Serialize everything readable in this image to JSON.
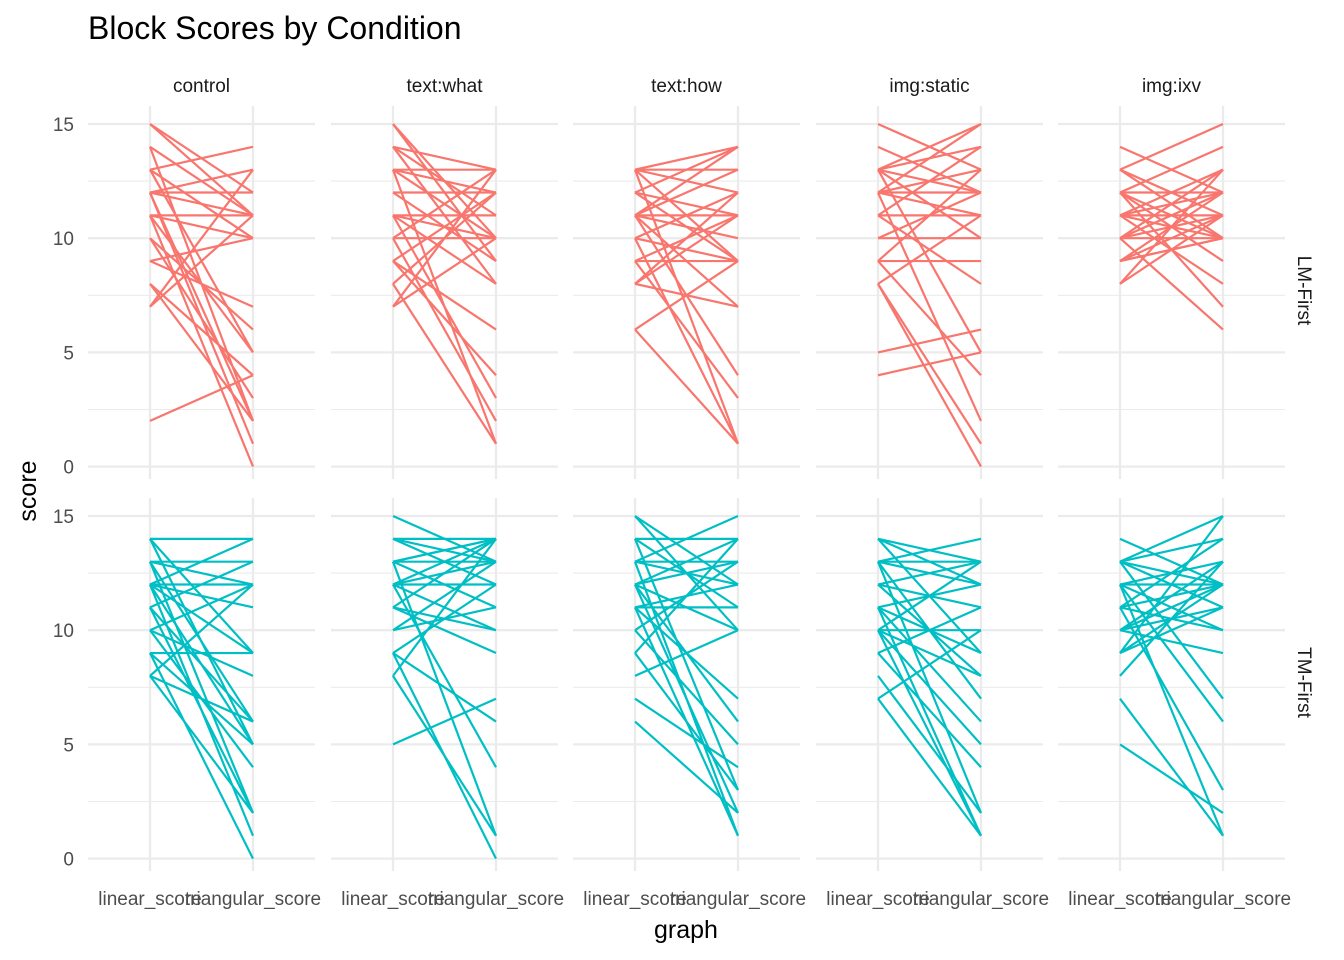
{
  "chart_data": {
    "type": "line",
    "title": "Block Scores by Condition",
    "xlabel": "graph",
    "ylabel": "score",
    "x_categories": [
      "linear_score",
      "triangular_score"
    ],
    "y_ticks": [
      0,
      5,
      10,
      15
    ],
    "ylim": [
      0,
      15
    ],
    "grid": true,
    "legend": "none",
    "facet_columns": [
      "control",
      "text:what",
      "text:how",
      "img:static",
      "img:ixv"
    ],
    "facet_rows": [
      "LM-First",
      "TM-First"
    ],
    "colors": {
      "LM-First": "#F8766D",
      "TM-First": "#00BFC4"
    },
    "panels": [
      {
        "row": "LM-First",
        "col": "control",
        "lines": [
          [
            15,
            12
          ],
          [
            15,
            11
          ],
          [
            14,
            11
          ],
          [
            14,
            2
          ],
          [
            13,
            14
          ],
          [
            13,
            10
          ],
          [
            13,
            5
          ],
          [
            12,
            13
          ],
          [
            12,
            12
          ],
          [
            12,
            11
          ],
          [
            12,
            2
          ],
          [
            12,
            1
          ],
          [
            11,
            11
          ],
          [
            11,
            10
          ],
          [
            11,
            5
          ],
          [
            11,
            0
          ],
          [
            10,
            6
          ],
          [
            10,
            3
          ],
          [
            9,
            10
          ],
          [
            9,
            7
          ],
          [
            8,
            4
          ],
          [
            8,
            2
          ],
          [
            7,
            13
          ],
          [
            7,
            11
          ],
          [
            2,
            4
          ]
        ]
      },
      {
        "row": "LM-First",
        "col": "text:what",
        "lines": [
          [
            15,
            10
          ],
          [
            15,
            9
          ],
          [
            14,
            13
          ],
          [
            14,
            11
          ],
          [
            14,
            8
          ],
          [
            13,
            13
          ],
          [
            13,
            10
          ],
          [
            13,
            1
          ],
          [
            13,
            12
          ],
          [
            12,
            12
          ],
          [
            12,
            9
          ],
          [
            11,
            11
          ],
          [
            11,
            10
          ],
          [
            11,
            3
          ],
          [
            11,
            8
          ],
          [
            10,
            13
          ],
          [
            10,
            10
          ],
          [
            10,
            2
          ],
          [
            9,
            12
          ],
          [
            9,
            6
          ],
          [
            9,
            4
          ],
          [
            8,
            1
          ],
          [
            7,
            13
          ],
          [
            7,
            10
          ],
          [
            8,
            12
          ]
        ]
      },
      {
        "row": "LM-First",
        "col": "text:how",
        "lines": [
          [
            13,
            14
          ],
          [
            13,
            13
          ],
          [
            13,
            12
          ],
          [
            13,
            1
          ],
          [
            12,
            14
          ],
          [
            12,
            11
          ],
          [
            12,
            9
          ],
          [
            11,
            14
          ],
          [
            11,
            13
          ],
          [
            11,
            11
          ],
          [
            11,
            10
          ],
          [
            11,
            7
          ],
          [
            11,
            4
          ],
          [
            10,
            12
          ],
          [
            10,
            9
          ],
          [
            10,
            1
          ],
          [
            9,
            11
          ],
          [
            9,
            9
          ],
          [
            9,
            3
          ],
          [
            8,
            12
          ],
          [
            8,
            11
          ],
          [
            8,
            7
          ],
          [
            6,
            9
          ],
          [
            6,
            1
          ],
          [
            13,
            9
          ]
        ]
      },
      {
        "row": "LM-First",
        "col": "img:static",
        "lines": [
          [
            15,
            13
          ],
          [
            14,
            12
          ],
          [
            13,
            15
          ],
          [
            13,
            14
          ],
          [
            13,
            12
          ],
          [
            13,
            10
          ],
          [
            13,
            5
          ],
          [
            12,
            13
          ],
          [
            12,
            11
          ],
          [
            12,
            2
          ],
          [
            12,
            15
          ],
          [
            11,
            14
          ],
          [
            11,
            11
          ],
          [
            11,
            8
          ],
          [
            10,
            12
          ],
          [
            10,
            10
          ],
          [
            9,
            13
          ],
          [
            9,
            9
          ],
          [
            9,
            4
          ],
          [
            8,
            11
          ],
          [
            8,
            0
          ],
          [
            8,
            1
          ],
          [
            5,
            6
          ],
          [
            4,
            5
          ],
          [
            12,
            12
          ]
        ]
      },
      {
        "row": "LM-First",
        "col": "img:ixv",
        "lines": [
          [
            14,
            12
          ],
          [
            13,
            15
          ],
          [
            13,
            11
          ],
          [
            13,
            10
          ],
          [
            12,
            14
          ],
          [
            12,
            12
          ],
          [
            12,
            10
          ],
          [
            12,
            9
          ],
          [
            12,
            7
          ],
          [
            11,
            13
          ],
          [
            11,
            12
          ],
          [
            11,
            10
          ],
          [
            11,
            8
          ],
          [
            10,
            13
          ],
          [
            10,
            11
          ],
          [
            10,
            10
          ],
          [
            10,
            6
          ],
          [
            9,
            12
          ],
          [
            9,
            11
          ],
          [
            9,
            10
          ],
          [
            8,
            13
          ],
          [
            8,
            11
          ],
          [
            11,
            11
          ],
          [
            10,
            12
          ],
          [
            9,
            10
          ]
        ]
      },
      {
        "row": "TM-First",
        "col": "control",
        "lines": [
          [
            14,
            14
          ],
          [
            14,
            9
          ],
          [
            14,
            5
          ],
          [
            13,
            13
          ],
          [
            13,
            12
          ],
          [
            13,
            6
          ],
          [
            13,
            2
          ],
          [
            12,
            14
          ],
          [
            12,
            12
          ],
          [
            12,
            9
          ],
          [
            12,
            5
          ],
          [
            12,
            1
          ],
          [
            12,
            11
          ],
          [
            11,
            13
          ],
          [
            11,
            6
          ],
          [
            11,
            2
          ],
          [
            10,
            12
          ],
          [
            10,
            8
          ],
          [
            10,
            4
          ],
          [
            9,
            9
          ],
          [
            9,
            5
          ],
          [
            9,
            0
          ],
          [
            8,
            12
          ],
          [
            8,
            6
          ],
          [
            8,
            2
          ]
        ]
      },
      {
        "row": "TM-First",
        "col": "text:what",
        "lines": [
          [
            15,
            13
          ],
          [
            14,
            14
          ],
          [
            14,
            13
          ],
          [
            14,
            12
          ],
          [
            13,
            14
          ],
          [
            13,
            11
          ],
          [
            13,
            13
          ],
          [
            13,
            1
          ],
          [
            12,
            14
          ],
          [
            12,
            12
          ],
          [
            12,
            10
          ],
          [
            12,
            4
          ],
          [
            12,
            13
          ],
          [
            11,
            14
          ],
          [
            11,
            10
          ],
          [
            11,
            9
          ],
          [
            10,
            13
          ],
          [
            10,
            11
          ],
          [
            9,
            12
          ],
          [
            9,
            6
          ],
          [
            9,
            0
          ],
          [
            8,
            14
          ],
          [
            8,
            1
          ],
          [
            5,
            7
          ],
          [
            13,
            14
          ]
        ]
      },
      {
        "row": "TM-First",
        "col": "text:how",
        "lines": [
          [
            15,
            12
          ],
          [
            15,
            10
          ],
          [
            14,
            14
          ],
          [
            14,
            11
          ],
          [
            14,
            3
          ],
          [
            13,
            15
          ],
          [
            13,
            12
          ],
          [
            13,
            1
          ],
          [
            13,
            13
          ],
          [
            12,
            14
          ],
          [
            12,
            13
          ],
          [
            12,
            10
          ],
          [
            12,
            2
          ],
          [
            12,
            6
          ],
          [
            11,
            12
          ],
          [
            11,
            11
          ],
          [
            11,
            7
          ],
          [
            11,
            1
          ],
          [
            10,
            13
          ],
          [
            10,
            5
          ],
          [
            9,
            14
          ],
          [
            9,
            3
          ],
          [
            8,
            10
          ],
          [
            7,
            4
          ],
          [
            6,
            2
          ]
        ]
      },
      {
        "row": "TM-First",
        "col": "img:static",
        "lines": [
          [
            14,
            13
          ],
          [
            14,
            12
          ],
          [
            14,
            9
          ],
          [
            13,
            14
          ],
          [
            13,
            13
          ],
          [
            13,
            12
          ],
          [
            13,
            7
          ],
          [
            13,
            2
          ],
          [
            12,
            11
          ],
          [
            12,
            13
          ],
          [
            12,
            8
          ],
          [
            11,
            12
          ],
          [
            11,
            9
          ],
          [
            11,
            6
          ],
          [
            11,
            1
          ],
          [
            10,
            13
          ],
          [
            10,
            10
          ],
          [
            10,
            8
          ],
          [
            10,
            5
          ],
          [
            10,
            1
          ],
          [
            9,
            11
          ],
          [
            9,
            4
          ],
          [
            8,
            2
          ],
          [
            7,
            10
          ],
          [
            7,
            1
          ]
        ]
      },
      {
        "row": "TM-First",
        "col": "img:ixv",
        "lines": [
          [
            14,
            12
          ],
          [
            13,
            15
          ],
          [
            13,
            14
          ],
          [
            13,
            12
          ],
          [
            13,
            11
          ],
          [
            13,
            7
          ],
          [
            12,
            13
          ],
          [
            12,
            12
          ],
          [
            12,
            10
          ],
          [
            12,
            6
          ],
          [
            12,
            1
          ],
          [
            11,
            14
          ],
          [
            11,
            12
          ],
          [
            11,
            10
          ],
          [
            11,
            3
          ],
          [
            10,
            13
          ],
          [
            10,
            12
          ],
          [
            10,
            11
          ],
          [
            10,
            9
          ],
          [
            9,
            15
          ],
          [
            9,
            12
          ],
          [
            9,
            11
          ],
          [
            8,
            13
          ],
          [
            7,
            1
          ],
          [
            5,
            2
          ]
        ]
      }
    ]
  }
}
